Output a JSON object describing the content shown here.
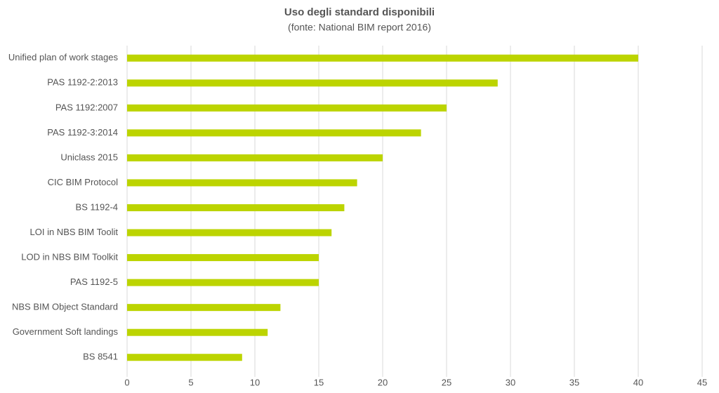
{
  "chart_data": {
    "type": "bar",
    "orientation": "horizontal",
    "title": "Uso degli standard disponibili",
    "subtitle": "(fonte: National BIM report 2016)",
    "categories": [
      "Unified plan of work stages",
      "PAS 1192-2:2013",
      "PAS 1192:2007",
      "PAS 1192-3:2014",
      "Uniclass 2015",
      "CIC BIM Protocol",
      "BS 1192-4",
      "LOI in NBS BIM Toolit",
      "LOD in NBS BIM Toolkit",
      "PAS 1192-5",
      "NBS BIM Object Standard",
      "Government Soft landings",
      "BS 8541"
    ],
    "values": [
      40,
      29,
      25,
      23,
      20,
      18,
      17,
      16,
      15,
      15,
      12,
      11,
      9
    ],
    "color": "#bcd400",
    "xlim": [
      0,
      45
    ],
    "xticks": [
      0,
      5,
      10,
      15,
      20,
      25,
      30,
      35,
      40,
      45
    ],
    "grid": true
  }
}
